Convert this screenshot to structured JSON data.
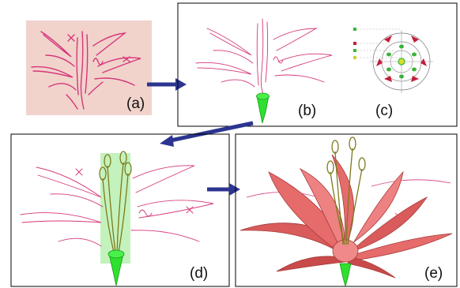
{
  "panels": [
    {
      "id": "a",
      "label": "(a)"
    },
    {
      "id": "b",
      "label": "(b)"
    },
    {
      "id": "c",
      "label": "(c)"
    },
    {
      "id": "d",
      "label": "(d)"
    },
    {
      "id": "e",
      "label": "(e)"
    }
  ],
  "colors": {
    "sketch_bg": "#f1d3cc",
    "stroke_pink": "#d6367a",
    "arrow_navy": "#2b3590",
    "stem_green": "#2fe02f",
    "highlight_green": "#b8f0b0",
    "petal_fill": "#e66b6b",
    "petal_dark": "#a83a3a",
    "stamen_olive": "#7d7a1c",
    "marker_red": "#c41d3a"
  }
}
